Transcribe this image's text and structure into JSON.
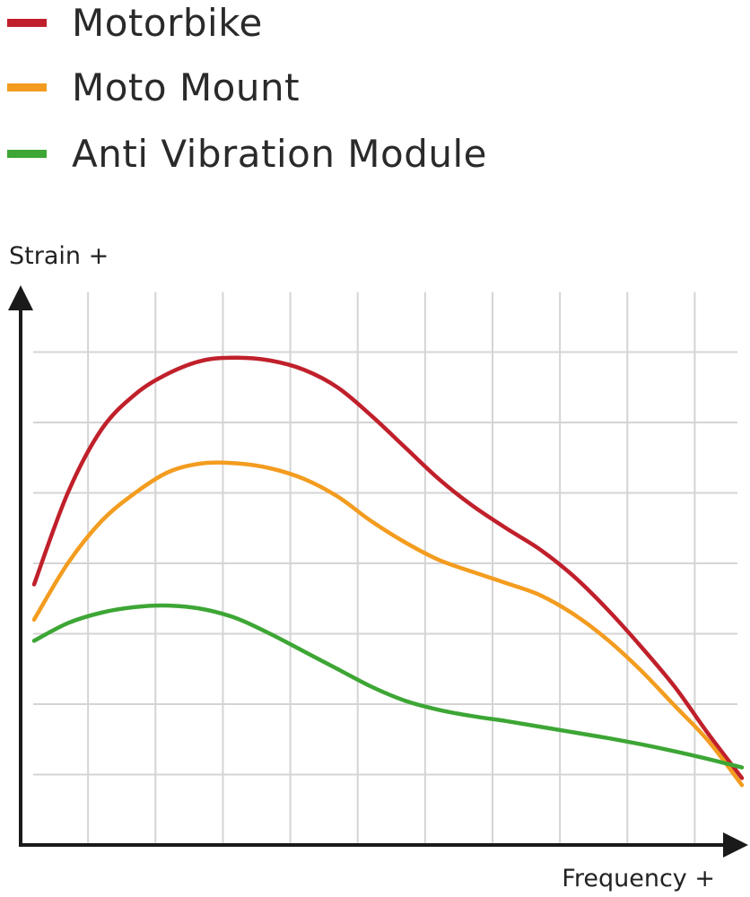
{
  "chart_data": {
    "type": "line",
    "title": "",
    "xlabel": "Frequency +",
    "ylabel": "Strain +",
    "grid": true,
    "legend_placement": "top-left",
    "xlim": [
      0,
      10.5
    ],
    "ylim": [
      0,
      8
    ],
    "x": [
      0,
      0.5,
      1,
      1.5,
      2,
      2.5,
      3,
      3.5,
      4,
      4.5,
      5,
      5.5,
      6,
      6.5,
      7,
      7.5,
      8,
      8.5,
      9,
      9.5,
      10,
      10.5
    ],
    "series": [
      {
        "name": "Motorbike",
        "color": "#c0202b",
        "values": [
          3.7,
          5.0,
          5.9,
          6.4,
          6.7,
          6.88,
          6.92,
          6.88,
          6.75,
          6.5,
          6.1,
          5.65,
          5.2,
          4.82,
          4.5,
          4.2,
          3.82,
          3.35,
          2.82,
          2.25,
          1.58,
          0.95
        ]
      },
      {
        "name": "Moto Mount",
        "color": "#f39c1f",
        "values": [
          3.2,
          4.0,
          4.6,
          5.0,
          5.3,
          5.42,
          5.42,
          5.35,
          5.2,
          4.95,
          4.6,
          4.3,
          4.05,
          3.88,
          3.72,
          3.55,
          3.28,
          2.92,
          2.48,
          1.98,
          1.48,
          0.85
        ]
      },
      {
        "name": "Anti Vibration Module",
        "color": "#3da635",
        "values": [
          2.9,
          3.15,
          3.3,
          3.38,
          3.4,
          3.35,
          3.22,
          3.0,
          2.75,
          2.5,
          2.25,
          2.05,
          1.92,
          1.83,
          1.76,
          1.68,
          1.6,
          1.52,
          1.43,
          1.33,
          1.22,
          1.1
        ]
      }
    ]
  }
}
